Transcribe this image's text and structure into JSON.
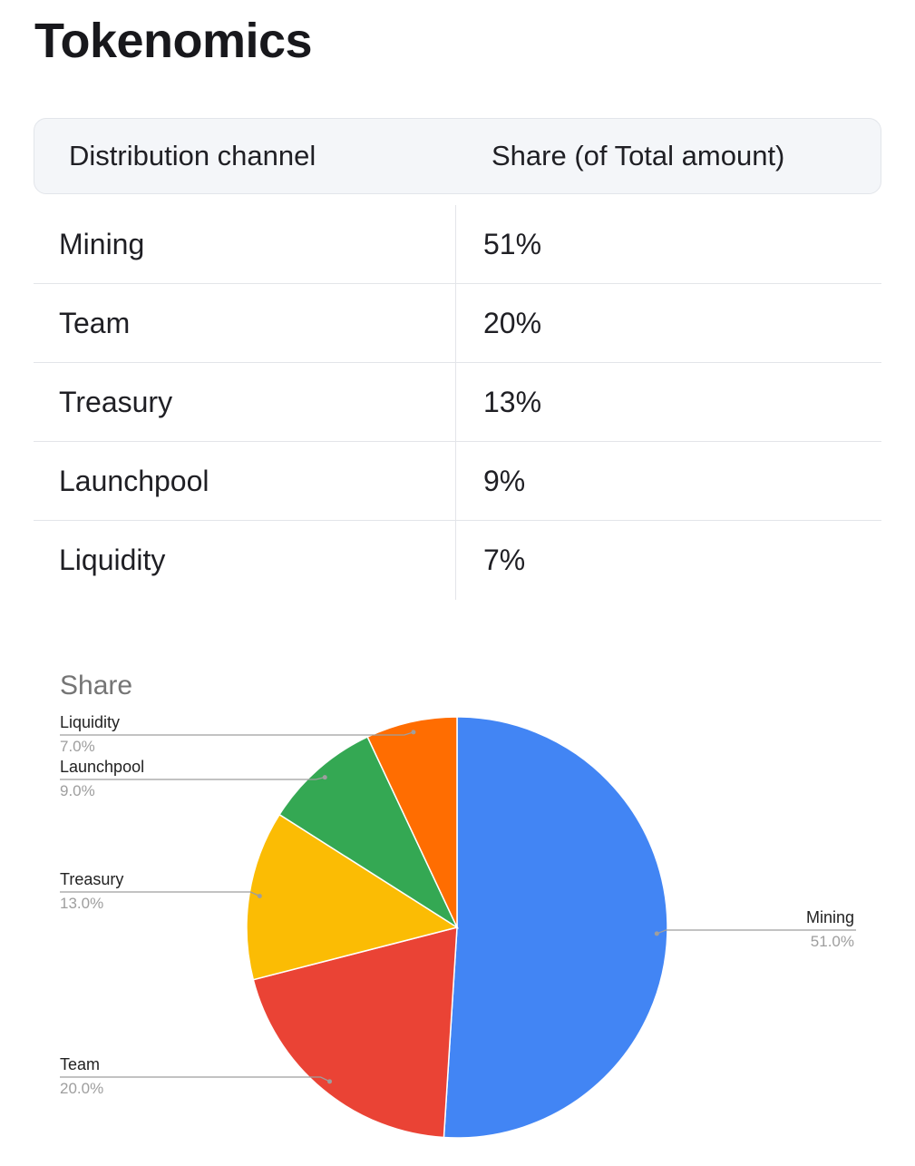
{
  "page": {
    "title": "Tokenomics"
  },
  "table": {
    "headers": [
      "Distribution channel",
      "Share (of Total amount)"
    ],
    "rows": [
      {
        "channel": "Mining",
        "share": "51%"
      },
      {
        "channel": "Team",
        "share": "20%"
      },
      {
        "channel": "Treasury",
        "share": "13%"
      },
      {
        "channel": "Launchpool",
        "share": "9%"
      },
      {
        "channel": "Liquidity",
        "share": "7%"
      }
    ]
  },
  "chart_data": {
    "type": "pie",
    "title": "Share",
    "categories": [
      "Mining",
      "Team",
      "Treasury",
      "Launchpool",
      "Liquidity"
    ],
    "values": [
      51,
      20,
      13,
      9,
      7
    ],
    "value_labels": [
      "51.0%",
      "20.0%",
      "13.0%",
      "9.0%",
      "7.0%"
    ],
    "colors": [
      "#4285f4",
      "#ea4335",
      "#fbbc04",
      "#34a853",
      "#ff6d01"
    ],
    "start": "12 o'clock, clockwise",
    "legend": "labeled leader lines"
  }
}
